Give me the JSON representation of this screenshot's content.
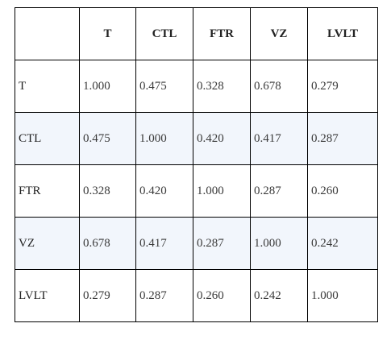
{
  "table": {
    "corner": "",
    "headers": [
      "T",
      "CTL",
      "FTR",
      "VZ",
      "LVLT"
    ],
    "rows": [
      {
        "label": "T",
        "cells": [
          "1.000",
          "0.475",
          "0.328",
          "0.678",
          "0.279"
        ],
        "shaded": false
      },
      {
        "label": "CTL",
        "cells": [
          "0.475",
          "1.000",
          "0.420",
          "0.417",
          "0.287"
        ],
        "shaded": true
      },
      {
        "label": "FTR",
        "cells": [
          "0.328",
          "0.420",
          "1.000",
          "0.287",
          "0.260"
        ],
        "shaded": false
      },
      {
        "label": "VZ",
        "cells": [
          "0.678",
          "0.417",
          "0.287",
          "1.000",
          "0.242"
        ],
        "shaded": true
      },
      {
        "label": "LVLT",
        "cells": [
          "0.279",
          "0.287",
          "0.260",
          "0.242",
          "1.000"
        ],
        "shaded": false
      }
    ],
    "shade_color": "#f2f6fc"
  }
}
